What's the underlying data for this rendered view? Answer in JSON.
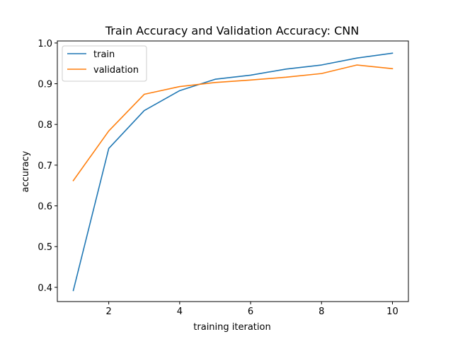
{
  "chart_data": {
    "type": "line",
    "title": "Train Accuracy and Validation Accuracy: CNN",
    "xlabel": "training iteration",
    "ylabel": "accuracy",
    "x": [
      1,
      2,
      3,
      4,
      5,
      6,
      7,
      8,
      9,
      10
    ],
    "xlim": [
      0.55,
      10.45
    ],
    "ylim": [
      0.365,
      1.005
    ],
    "xticks": [
      2,
      4,
      6,
      8,
      10
    ],
    "yticks": [
      0.4,
      0.5,
      0.6,
      0.7,
      0.8,
      0.9,
      1.0
    ],
    "xtick_labels": [
      "2",
      "4",
      "6",
      "8",
      "10"
    ],
    "ytick_labels": [
      "0.4",
      "0.5",
      "0.6",
      "0.7",
      "0.8",
      "0.9",
      "1.0"
    ],
    "grid": false,
    "legend_position": "top-left",
    "series": [
      {
        "name": "train",
        "color": "#1f77b4",
        "values": [
          0.392,
          0.741,
          0.834,
          0.883,
          0.911,
          0.921,
          0.936,
          0.946,
          0.963,
          0.975
        ]
      },
      {
        "name": "validation",
        "color": "#ff7f0e",
        "values": [
          0.662,
          0.784,
          0.874,
          0.893,
          0.903,
          0.909,
          0.916,
          0.925,
          0.946,
          0.937
        ]
      }
    ]
  }
}
